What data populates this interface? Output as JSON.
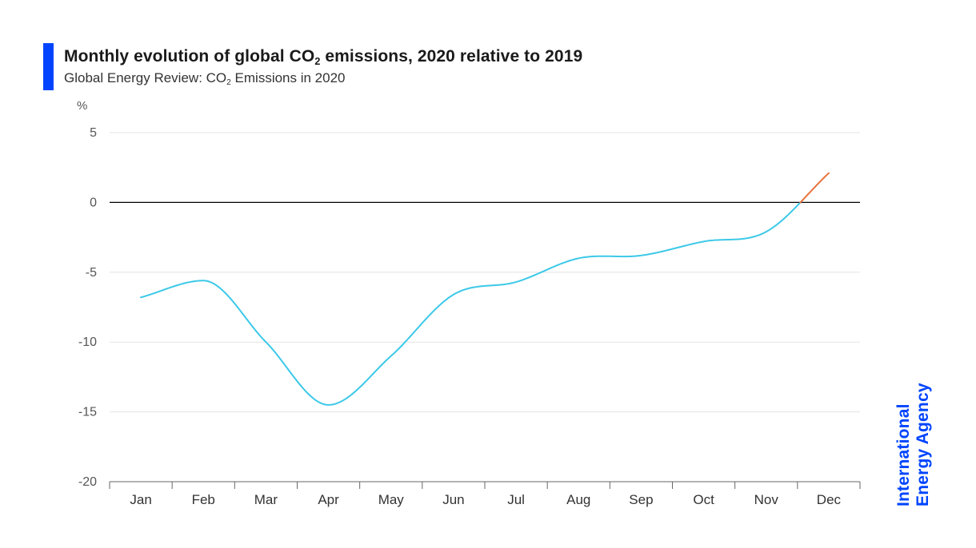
{
  "header": {
    "title_prefix": "Monthly evolution of global CO",
    "title_sub": "2",
    "title_suffix": " emissions, 2020 relative to 2019",
    "subtitle_prefix": "Global Energy Review: CO",
    "subtitle_sub": "2",
    "subtitle_suffix": " Emissions in 2020"
  },
  "brand": {
    "line1": "International",
    "line2": "Energy Agency",
    "color": "#0044ff"
  },
  "colors": {
    "negative_series": "#3cc9e8",
    "positive_series": "#e8733c",
    "zero_line": "#000000",
    "grid": "#e3e3e3",
    "axis": "#666666"
  },
  "chart_data": {
    "type": "line",
    "title": "Monthly evolution of global CO2 emissions, 2020 relative to 2019",
    "subtitle": "Global Energy Review: CO2 Emissions in 2020",
    "ylabel": "%",
    "xlabel": "",
    "categories": [
      "Jan",
      "Feb",
      "Mar",
      "Apr",
      "May",
      "Jun",
      "Jul",
      "Aug",
      "Sep",
      "Oct",
      "Nov",
      "Dec"
    ],
    "series": [
      {
        "values": [
          -6.8,
          -5.6,
          -10.0,
          -14.5,
          -11.0,
          -6.6,
          -5.7,
          -4.0,
          -3.8,
          -2.8,
          -2.1,
          2.1
        ]
      }
    ],
    "ylim": [
      -20,
      5
    ],
    "yticks": [
      5,
      0,
      -5,
      -10,
      -15,
      -20
    ],
    "grid": true,
    "legend": "none",
    "note": "Line segment above 0 is drawn orange; below 0 is light blue"
  }
}
